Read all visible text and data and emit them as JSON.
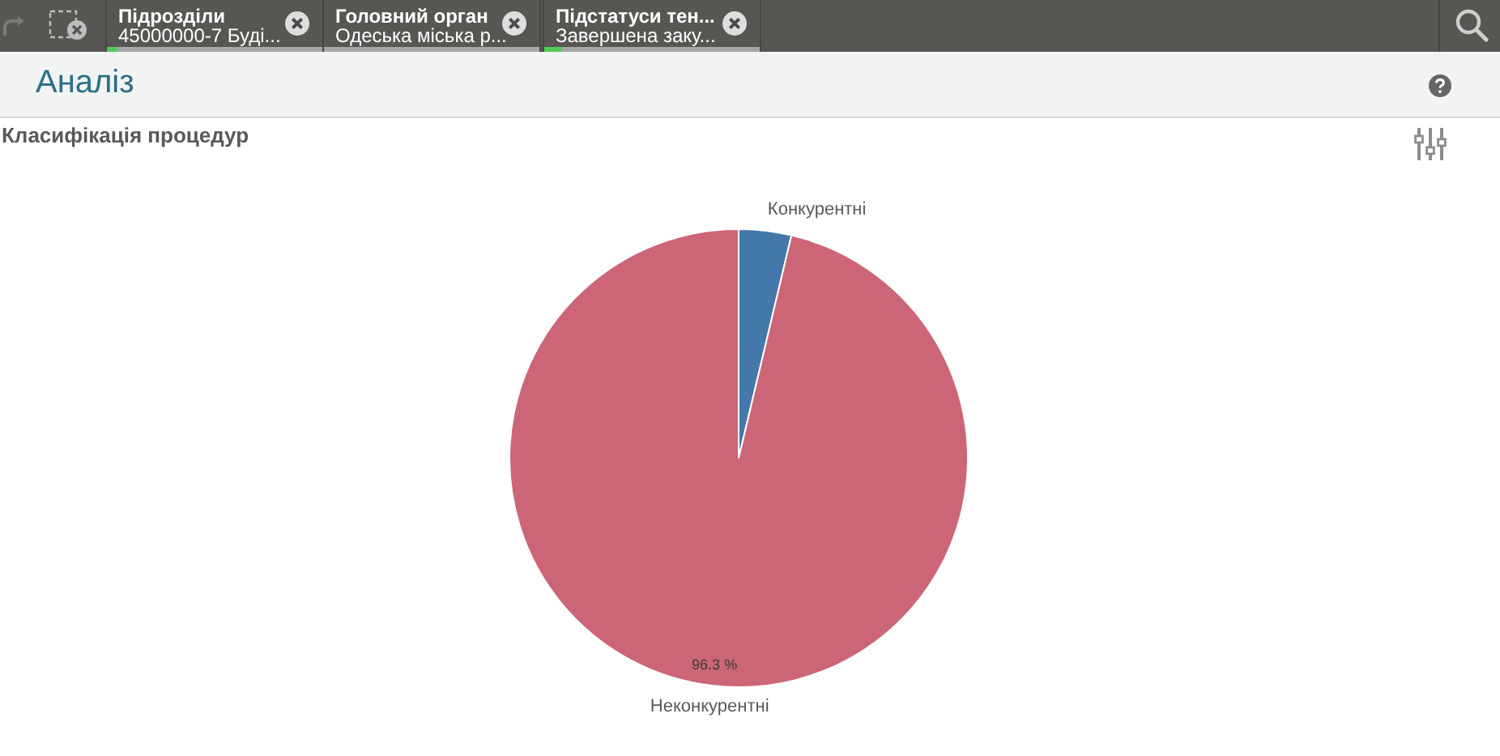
{
  "chart_data": {
    "type": "pie",
    "title": "Класифікація процедур",
    "categories": [
      "Конкурентні",
      "Неконкурентні"
    ],
    "values": [
      3.7,
      96.3
    ],
    "colors": [
      "#4477aa",
      "#cc6677"
    ],
    "value_labels": [
      null,
      "96.3 %"
    ],
    "annotations": [
      "Аналіз",
      "Підрозділи",
      "45000000-7 Буді...",
      "Головний орган",
      "Одеська міська р...",
      "Підстатуси тен...",
      "Завершена заку..."
    ]
  }
}
